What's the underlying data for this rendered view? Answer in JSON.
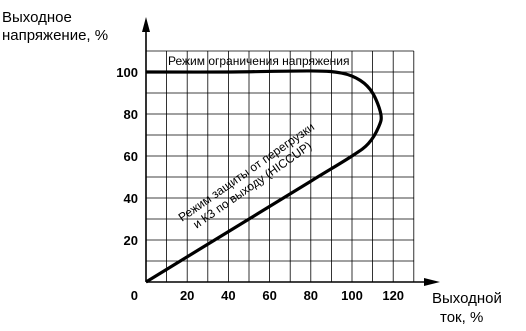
{
  "chart_data": {
    "type": "line",
    "ylabel": [
      "Выходное",
      "напряжение, %"
    ],
    "xlabel": [
      "Выходной",
      "ток, %"
    ],
    "xlim": [
      0,
      140
    ],
    "ylim": [
      0,
      110
    ],
    "x_ticks": [
      20,
      40,
      60,
      80,
      100,
      120
    ],
    "y_ticks": [
      20,
      40,
      60,
      80,
      100
    ],
    "origin_label": "0",
    "grid": true,
    "series": [
      {
        "values": [
          {
            "x": 0,
            "y": 100
          },
          {
            "x": 40,
            "y": 100
          },
          {
            "x": 80,
            "y": 100.5
          },
          {
            "x": 95,
            "y": 99.5
          },
          {
            "x": 104,
            "y": 96
          },
          {
            "x": 110,
            "y": 90
          },
          {
            "x": 114,
            "y": 80
          },
          {
            "x": 113,
            "y": 74
          },
          {
            "x": 108,
            "y": 66
          },
          {
            "x": 100,
            "y": 60
          },
          {
            "x": 80,
            "y": 48
          },
          {
            "x": 40,
            "y": 24
          },
          {
            "x": 0,
            "y": 0
          }
        ]
      }
    ],
    "annotations": [
      "Режим ограничения напряжения",
      "Режим защиты от перегрузки",
      "и КЗ по выходу (HICCUP)"
    ]
  }
}
